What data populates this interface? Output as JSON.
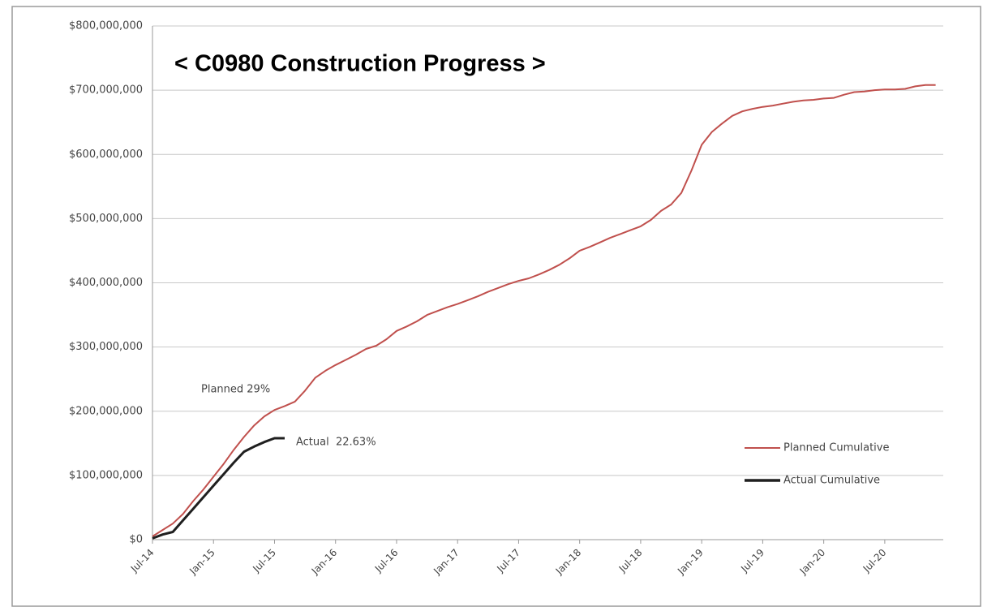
{
  "chart_data": {
    "type": "line",
    "title": "< C0980 Construction Progress >",
    "categories": [
      "Jul-14",
      null,
      null,
      null,
      null,
      null,
      "Jan-15",
      null,
      null,
      null,
      null,
      null,
      "Jul-15",
      null,
      null,
      null,
      null,
      null,
      "Jan-16",
      null,
      null,
      null,
      null,
      null,
      "Jul-16",
      null,
      null,
      null,
      null,
      null,
      "Jan-17",
      null,
      null,
      null,
      null,
      null,
      "Jul-17",
      null,
      null,
      null,
      null,
      null,
      "Jan-18",
      null,
      null,
      null,
      null,
      null,
      "Jul-18",
      null,
      null,
      null,
      null,
      null,
      "Jan-19",
      null,
      null,
      null,
      null,
      null,
      "Jul-19",
      null,
      null,
      null,
      null,
      null,
      "Jan-20",
      null,
      null,
      null,
      null,
      null,
      "Jul-20",
      null,
      null,
      null,
      null,
      null
    ],
    "series": [
      {
        "name": "Planned Cumulative",
        "color": "#c0504d",
        "values": [
          5000000,
          15000000,
          25000000,
          40000000,
          60000000,
          78000000,
          98000000,
          118000000,
          140000000,
          160000000,
          178000000,
          192000000,
          202000000,
          208000000,
          215000000,
          232000000,
          252000000,
          263000000,
          272000000,
          280000000,
          288000000,
          297000000,
          302000000,
          312000000,
          325000000,
          332000000,
          340000000,
          350000000,
          356000000,
          362000000,
          367000000,
          373000000,
          379000000,
          386000000,
          392000000,
          398000000,
          403000000,
          407000000,
          413000000,
          420000000,
          428000000,
          438000000,
          450000000,
          456000000,
          463000000,
          470000000,
          476000000,
          482000000,
          488000000,
          498000000,
          512000000,
          522000000,
          540000000,
          575000000,
          615000000,
          635000000,
          648000000,
          660000000,
          667000000,
          671000000,
          674000000,
          676000000,
          679000000,
          682000000,
          684000000,
          685000000,
          687000000,
          688000000,
          693000000,
          697000000,
          698000000,
          700000000,
          701000000,
          701000000,
          702000000,
          706000000,
          708000000,
          708000000
        ]
      },
      {
        "name": "Actual Cumulative",
        "color": "#1f1f1f",
        "values": [
          2000000,
          8000000,
          12000000,
          30000000,
          48000000,
          66000000,
          84000000,
          102000000,
          120000000,
          137000000,
          145000000,
          152000000,
          158000000,
          158000000,
          null,
          null,
          null,
          null,
          null,
          null,
          null,
          null,
          null,
          null,
          null,
          null,
          null,
          null,
          null,
          null,
          null,
          null,
          null,
          null,
          null,
          null,
          null,
          null,
          null,
          null,
          null,
          null,
          null,
          null,
          null,
          null,
          null,
          null,
          null,
          null,
          null,
          null,
          null,
          null,
          null,
          null,
          null,
          null,
          null,
          null,
          null,
          null,
          null,
          null,
          null,
          null,
          null,
          null,
          null,
          null,
          null,
          null,
          null,
          null,
          null,
          null,
          null,
          null
        ]
      }
    ],
    "annotations": [
      "Planned 29%",
      "Actual  22.63%"
    ],
    "ylim": [
      0,
      800000000
    ],
    "yticks": [
      {
        "value": 0,
        "label": "$0"
      },
      {
        "value": 100000000,
        "label": "$100,000,000"
      },
      {
        "value": 200000000,
        "label": "$200,000,000"
      },
      {
        "value": 300000000,
        "label": "$300,000,000"
      },
      {
        "value": 400000000,
        "label": "$400,000,000"
      },
      {
        "value": 500000000,
        "label": "$500,000,000"
      },
      {
        "value": 600000000,
        "label": "$600,000,000"
      },
      {
        "value": 700000000,
        "label": "$700,000,000"
      },
      {
        "value": 800000000,
        "label": "$800,000,000"
      }
    ],
    "grid": true,
    "legend": "lower right"
  }
}
